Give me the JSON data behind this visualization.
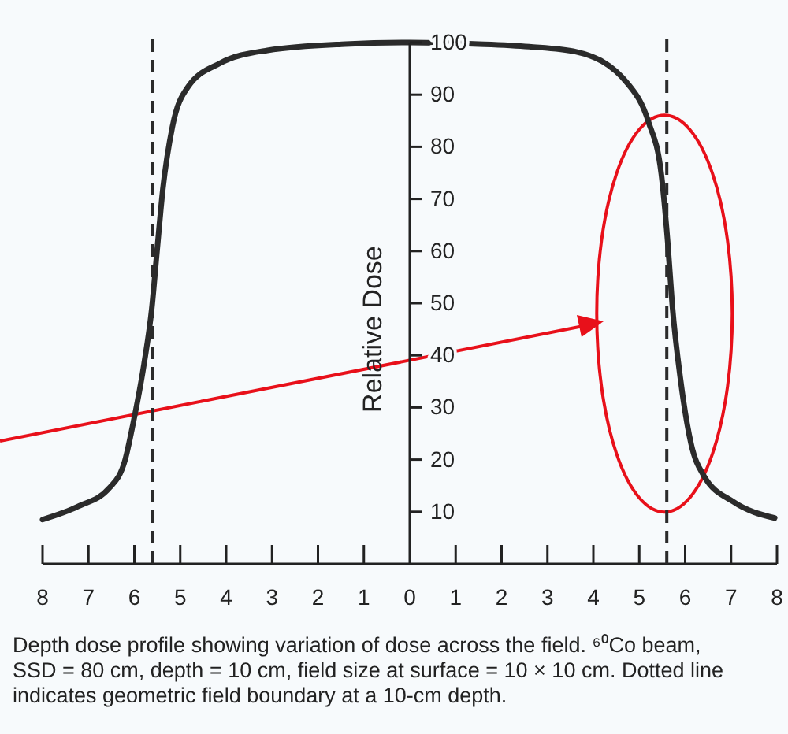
{
  "chart_data": {
    "type": "line",
    "ylabel": "Relative Dose",
    "series": [
      {
        "color": "#2b2b2b",
        "x": [
          -8,
          -7.23,
          -6.54,
          -6.2,
          -6.03,
          -5.79,
          -5.62,
          -5.51,
          -5.38,
          -5.17,
          -4.83,
          -4.14,
          -3.1,
          -1.4,
          0,
          1.5,
          2.6,
          3.63,
          4.76,
          5.2,
          5.48,
          5.62,
          5.72,
          5.9,
          6.13,
          6.4,
          7.05,
          7.95
        ],
        "values": [
          8.5,
          11,
          14.6,
          20,
          26.8,
          38.3,
          49,
          59.6,
          71.8,
          83.9,
          91.5,
          96,
          98.5,
          99.7,
          100,
          99.7,
          99.2,
          98.2,
          92,
          84.8,
          74.8,
          61.7,
          49.6,
          35.3,
          23,
          17,
          11.9,
          8.8
        ]
      }
    ],
    "xlim": [
      -8,
      8
    ],
    "ylim": [
      0,
      100
    ],
    "xticks": [
      {
        "value": -8,
        "label": "8"
      },
      {
        "value": -7,
        "label": "7"
      },
      {
        "value": -6,
        "label": "6"
      },
      {
        "value": -5,
        "label": "5"
      },
      {
        "value": -4,
        "label": "4"
      },
      {
        "value": -3,
        "label": "3"
      },
      {
        "value": -2,
        "label": "2"
      },
      {
        "value": -1,
        "label": "1"
      },
      0,
      1,
      2,
      3,
      4,
      5,
      6,
      7,
      8
    ],
    "yticks": [
      10,
      20,
      30,
      40,
      50,
      60,
      70,
      80,
      90,
      100
    ],
    "ref_lines": [
      {
        "axis": "x",
        "value": -5.6,
        "line_style": "dashed",
        "color": "#2b2b2b"
      },
      {
        "axis": "x",
        "value": 5.6,
        "line_style": "dashed",
        "color": "#2b2b2b"
      }
    ],
    "annotations": [
      "Depth dose profile showing variation of dose across the field. ⁶⁰Co beam, SSD = 80 cm, depth = 10 cm, field size at surface = 10 × 10 cm. Dotted line indicates geometric field boundary at a 10-cm depth."
    ],
    "grid": false,
    "marker": "none",
    "line_style": "solid"
  }
}
